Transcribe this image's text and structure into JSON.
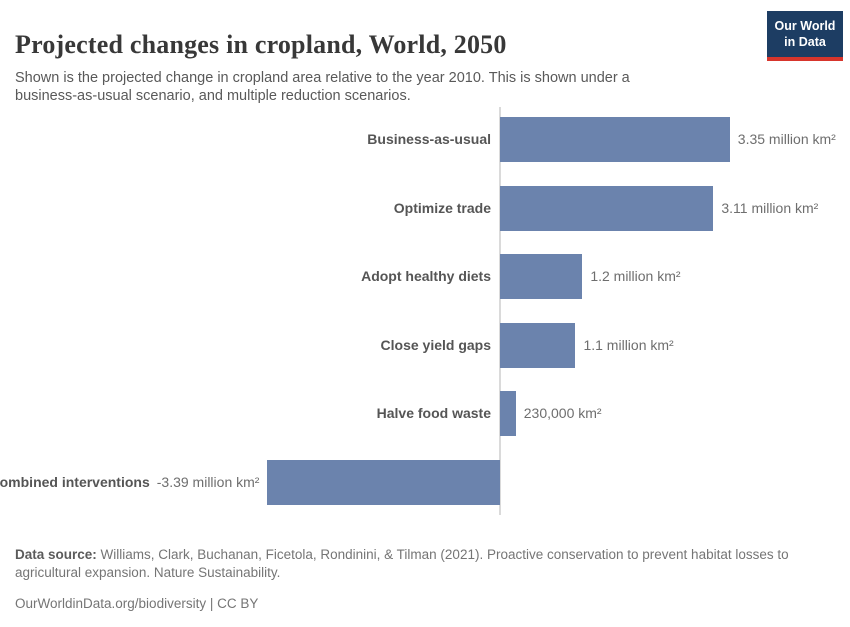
{
  "header": {
    "title": "Projected changes in cropland, World, 2050",
    "subtitle": "Shown is the projected change in cropland area relative to the year 2010. This is shown under a business-as-usual scenario, and multiple reduction scenarios.",
    "logo": {
      "line1": "Our World",
      "line2": "in Data"
    }
  },
  "chart_data": {
    "type": "bar",
    "orientation": "horizontal",
    "title": "Projected changes in cropland, World, 2050",
    "categories": [
      "Business-as-usual",
      "Optimize trade",
      "Adopt healthy diets",
      "Close yield gaps",
      "Halve food waste",
      "Combined interventions"
    ],
    "values": [
      3.35,
      3.11,
      1.2,
      1.1,
      0.23,
      -3.39
    ],
    "value_unit": "million km²",
    "value_labels": [
      "3.35 million km²",
      "3.11 million km²",
      "1.2 million km²",
      "1.1 million km²",
      "230,000 km²",
      "-3.39 million km²"
    ],
    "baseline": 0,
    "xlim": [
      -3.39,
      3.35
    ],
    "grid": false,
    "legend": false,
    "bar_color": "#6b83ad",
    "axis_color": "#dadada"
  },
  "footer": {
    "datasource_label": "Data source:",
    "datasource_text": "Williams, Clark, Buchanan, Ficetola, Rondinini, & Tilman (2021). Proactive conservation to prevent habitat losses to agricultural expansion. Nature Sustainability.",
    "link": "OurWorldinData.org/biodiversity",
    "separator": "|",
    "license": "CC BY"
  },
  "colors": {
    "bar": "#6b83ad",
    "logo_navy": "#1d3d63",
    "logo_red": "#d7352c",
    "title_text": "#383838",
    "body_text": "#595959",
    "muted_text": "#757575"
  }
}
